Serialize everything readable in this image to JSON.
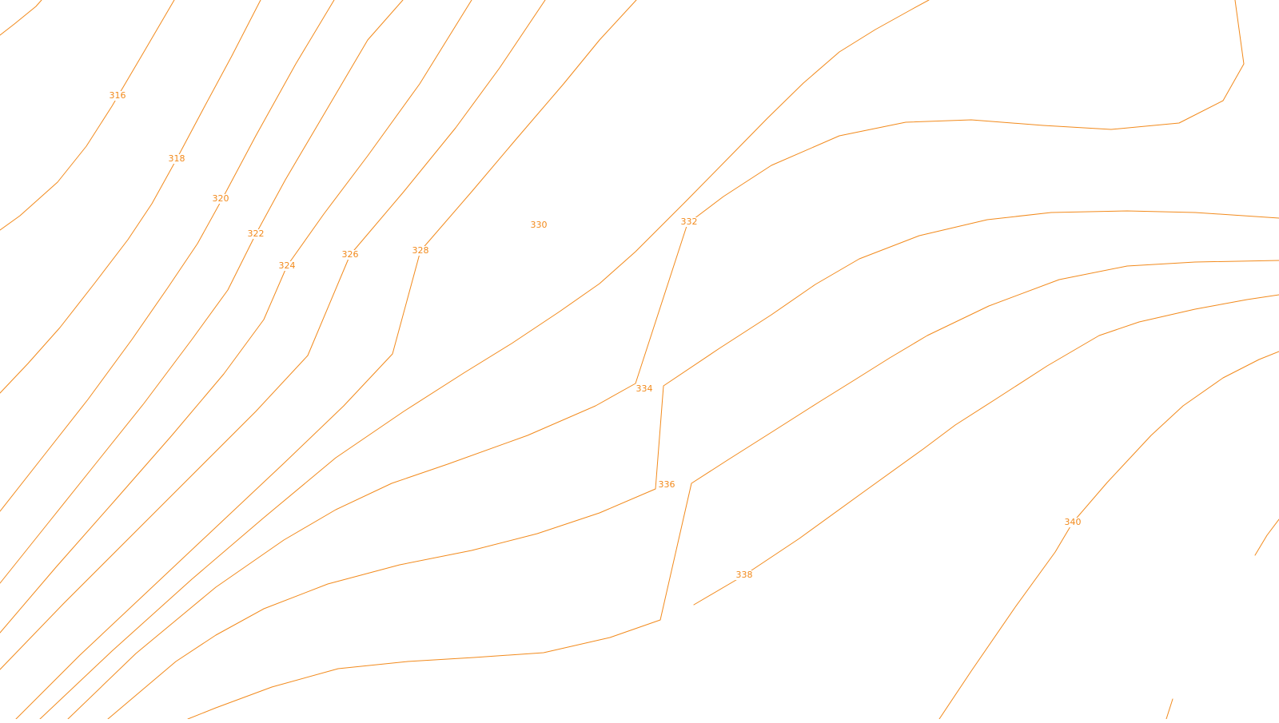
{
  "map": {
    "line_color": "#f28a1c",
    "label_color": "#f28a1c",
    "background_color": "#ffffff",
    "contour_interval": 2,
    "contours": [
      {
        "elevation": "316"
      },
      {
        "elevation": "318"
      },
      {
        "elevation": "320"
      },
      {
        "elevation": "322"
      },
      {
        "elevation": "324"
      },
      {
        "elevation": "326"
      },
      {
        "elevation": "328"
      },
      {
        "elevation": "330"
      },
      {
        "elevation": "332"
      },
      {
        "elevation": "334"
      },
      {
        "elevation": "336"
      },
      {
        "elevation": "338"
      },
      {
        "elevation": "340"
      }
    ]
  }
}
